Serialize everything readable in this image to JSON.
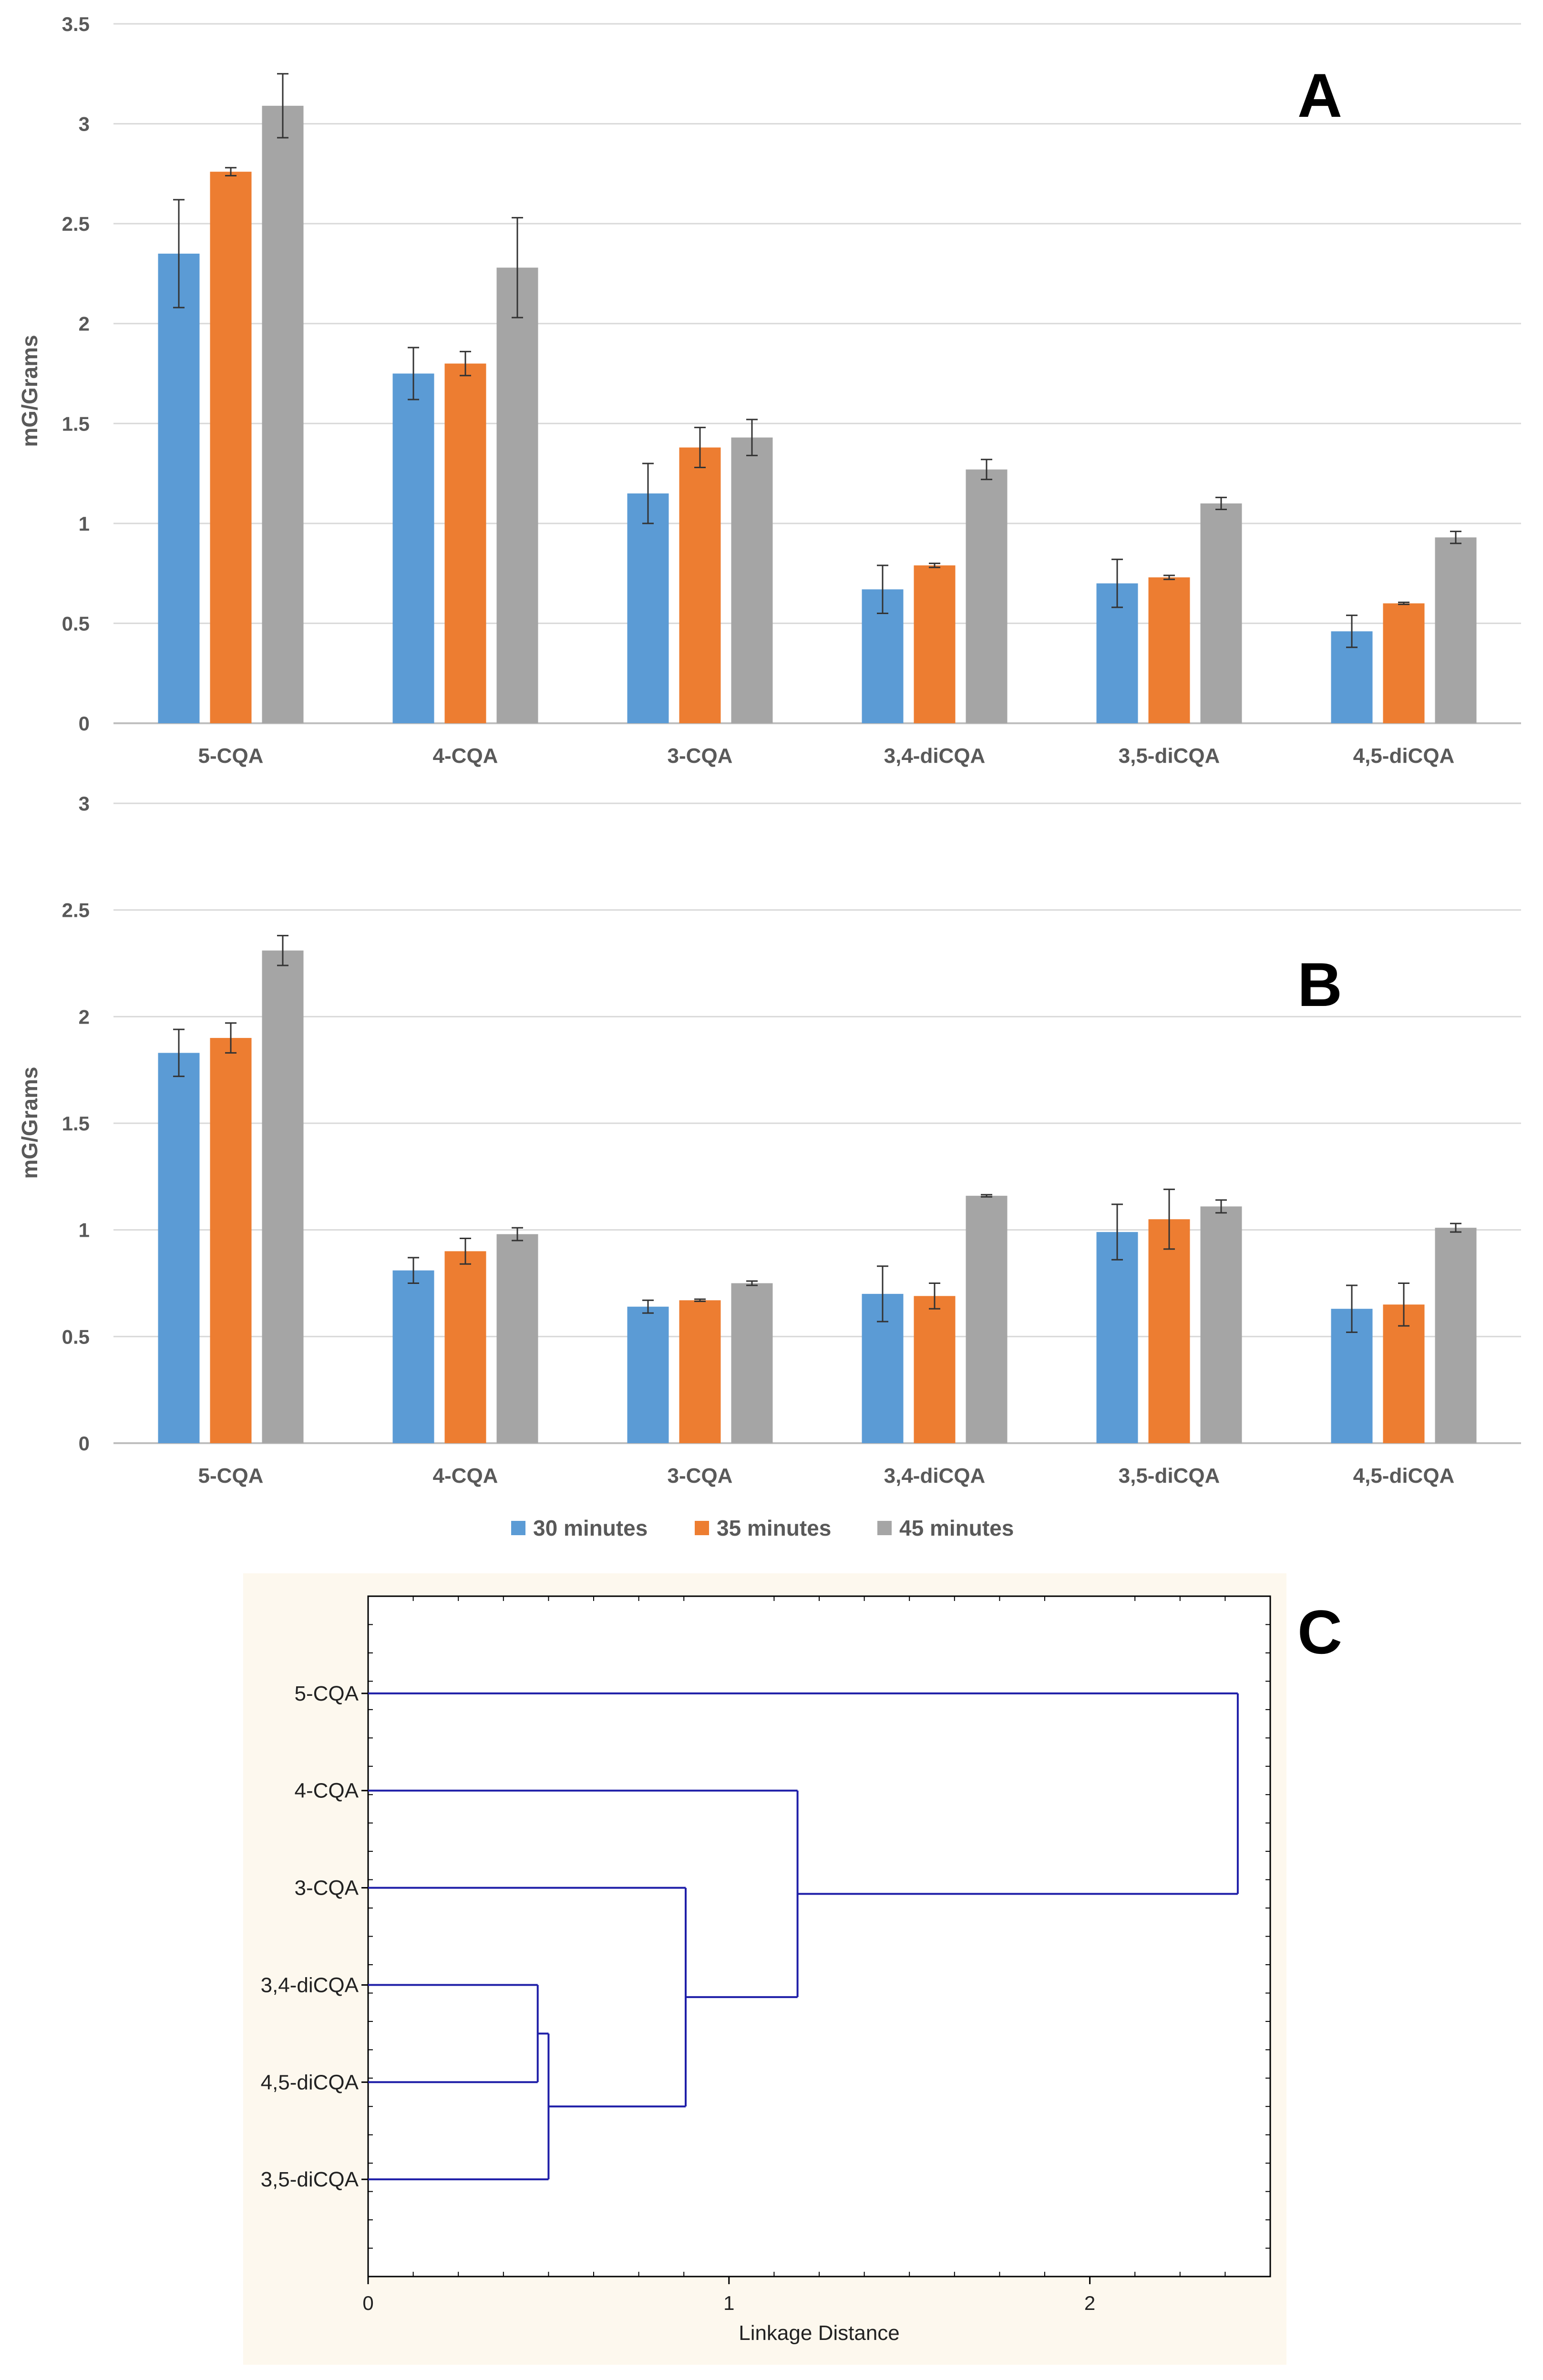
{
  "colors": {
    "30 minutes": "#5b9bd5",
    "35 minutes": "#ed7d31",
    "45 minutes": "#a5a5a5",
    "dendrogram_line": "#1f1fa8",
    "dendrogram_bg": "#fdf8ee"
  },
  "legend": [
    "30 minutes",
    "35 minutes",
    "45 minutes"
  ],
  "chart_data": [
    {
      "type": "bar",
      "panel_label": "A",
      "ylabel": "mG/Grams",
      "xlabel": "",
      "ylim": [
        0,
        3.5
      ],
      "yticks": [
        "0",
        "0.5",
        "1",
        "1.5",
        "2",
        "2.5",
        "3",
        "3.5"
      ],
      "grid": true,
      "categories": [
        "5-CQA",
        "4-CQA",
        "3-CQA",
        "3,4-diCQA",
        "3,5-diCQA",
        "4,5-diCQA"
      ],
      "series": [
        {
          "name": "30 minutes",
          "values": [
            2.35,
            1.75,
            1.15,
            0.67,
            0.7,
            0.46
          ],
          "errors": [
            0.27,
            0.13,
            0.15,
            0.12,
            0.12,
            0.08
          ]
        },
        {
          "name": "35 minutes",
          "values": [
            2.76,
            1.8,
            1.38,
            0.79,
            0.73,
            0.6
          ],
          "errors": [
            0.02,
            0.06,
            0.1,
            0.01,
            0.01,
            0.005
          ]
        },
        {
          "name": "45 minutes",
          "values": [
            3.09,
            2.28,
            1.43,
            1.27,
            1.1,
            0.93
          ],
          "errors": [
            0.16,
            0.25,
            0.09,
            0.05,
            0.03,
            0.03
          ]
        }
      ]
    },
    {
      "type": "bar",
      "panel_label": "B",
      "ylabel": "mG/Grams",
      "xlabel": "",
      "ylim": [
        0,
        3
      ],
      "yticks": [
        "0",
        "0.5",
        "1",
        "1.5",
        "2",
        "2.5",
        "3"
      ],
      "grid": true,
      "categories": [
        "5-CQA",
        "4-CQA",
        "3-CQA",
        "3,4-diCQA",
        "3,5-diCQA",
        "4,5-diCQA"
      ],
      "series": [
        {
          "name": "30 minutes",
          "values": [
            1.83,
            0.81,
            0.64,
            0.7,
            0.99,
            0.63
          ],
          "errors": [
            0.11,
            0.06,
            0.03,
            0.13,
            0.13,
            0.11
          ]
        },
        {
          "name": "35 minutes",
          "values": [
            1.9,
            0.9,
            0.67,
            0.69,
            1.05,
            0.65
          ],
          "errors": [
            0.07,
            0.06,
            0.005,
            0.06,
            0.14,
            0.1
          ]
        },
        {
          "name": "45 minutes",
          "values": [
            2.31,
            0.98,
            0.75,
            1.16,
            1.11,
            1.01
          ],
          "errors": [
            0.07,
            0.03,
            0.01,
            0.005,
            0.03,
            0.02
          ]
        }
      ]
    },
    {
      "type": "dendrogram",
      "panel_label": "C",
      "xlabel": "Linkage Distance",
      "ylabel": "",
      "xlim": [
        0,
        2.5
      ],
      "xticks": [
        "0",
        "1",
        "2"
      ],
      "leaves": [
        "5-CQA",
        "4-CQA",
        "3-CQA",
        "3,4-diCQA",
        "4,5-diCQA",
        "3,5-diCQA"
      ],
      "merges": [
        {
          "children": [
            "3,4-diCQA",
            "4,5-diCQA"
          ],
          "distance": 0.47
        },
        {
          "children": [
            "3,4-diCQA+4,5-diCQA",
            "3,5-diCQA"
          ],
          "distance": 0.5
        },
        {
          "children": [
            "3-CQA",
            "diCQA cluster"
          ],
          "distance": 0.88
        },
        {
          "children": [
            "4-CQA",
            "3-CQA cluster"
          ],
          "distance": 1.19
        },
        {
          "children": [
            "5-CQA",
            "rest"
          ],
          "distance": 2.41
        }
      ]
    }
  ]
}
